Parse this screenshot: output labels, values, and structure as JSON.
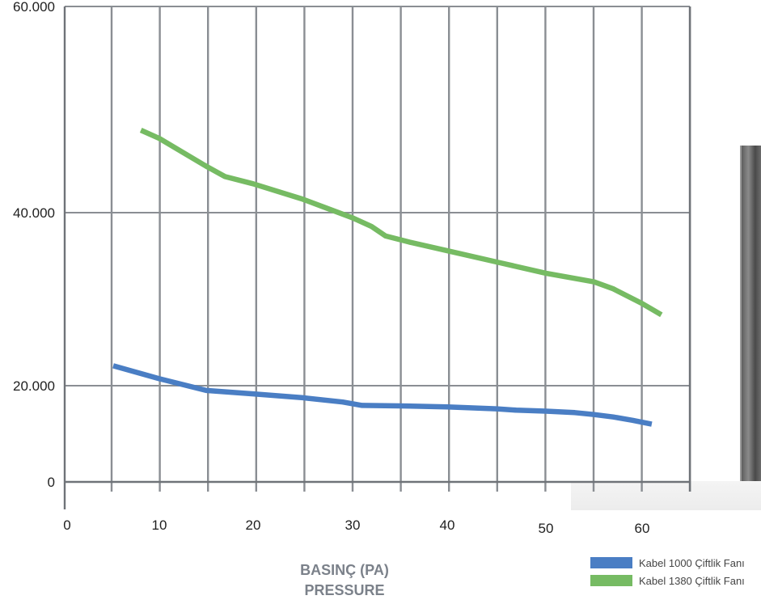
{
  "chart_data": {
    "type": "line",
    "title": "",
    "xlabel": "BASINÇ (PA)",
    "xlabel_sub": "PRESSURE",
    "ylabel": "",
    "xlim": [
      0,
      65
    ],
    "ylim": [
      0,
      60000
    ],
    "x_ticks": [
      "0",
      "10",
      "20",
      "30",
      "40",
      "50",
      "60"
    ],
    "y_ticks": [
      {
        "value": 0,
        "label": "0"
      },
      {
        "value": 20000,
        "label": "20.000"
      },
      {
        "value": 40000,
        "label": "40.000"
      },
      {
        "value": 60000,
        "label": "60.000"
      }
    ],
    "grid": true,
    "legend": "bottom-right",
    "series": [
      {
        "name": "Kabel 1000 Çiftlik Fanı",
        "color": "#4a7ec4",
        "points": [
          [
            5,
            22300
          ],
          [
            10,
            20800
          ],
          [
            15,
            19000
          ],
          [
            20,
            18300
          ],
          [
            25,
            17500
          ],
          [
            29,
            16600
          ],
          [
            31,
            15900
          ],
          [
            35,
            15800
          ],
          [
            40,
            15600
          ],
          [
            45,
            15200
          ],
          [
            47,
            14900
          ],
          [
            50,
            14700
          ],
          [
            53,
            14400
          ],
          [
            55,
            14000
          ],
          [
            57,
            13500
          ],
          [
            59,
            12800
          ],
          [
            61,
            12000
          ]
        ]
      },
      {
        "name": "Kabel 1380 Çiftlik Fanı",
        "color": "#76bb63",
        "points": [
          [
            8,
            48000
          ],
          [
            10,
            47200
          ],
          [
            15,
            44500
          ],
          [
            17,
            43500
          ],
          [
            20,
            42800
          ],
          [
            25,
            41300
          ],
          [
            30,
            39400
          ],
          [
            32,
            38400
          ],
          [
            33.5,
            37300
          ],
          [
            36,
            36600
          ],
          [
            40,
            35600
          ],
          [
            45,
            34300
          ],
          [
            50,
            33000
          ],
          [
            55,
            32000
          ],
          [
            57,
            31200
          ],
          [
            60,
            29500
          ],
          [
            62,
            28200
          ]
        ]
      }
    ]
  }
}
